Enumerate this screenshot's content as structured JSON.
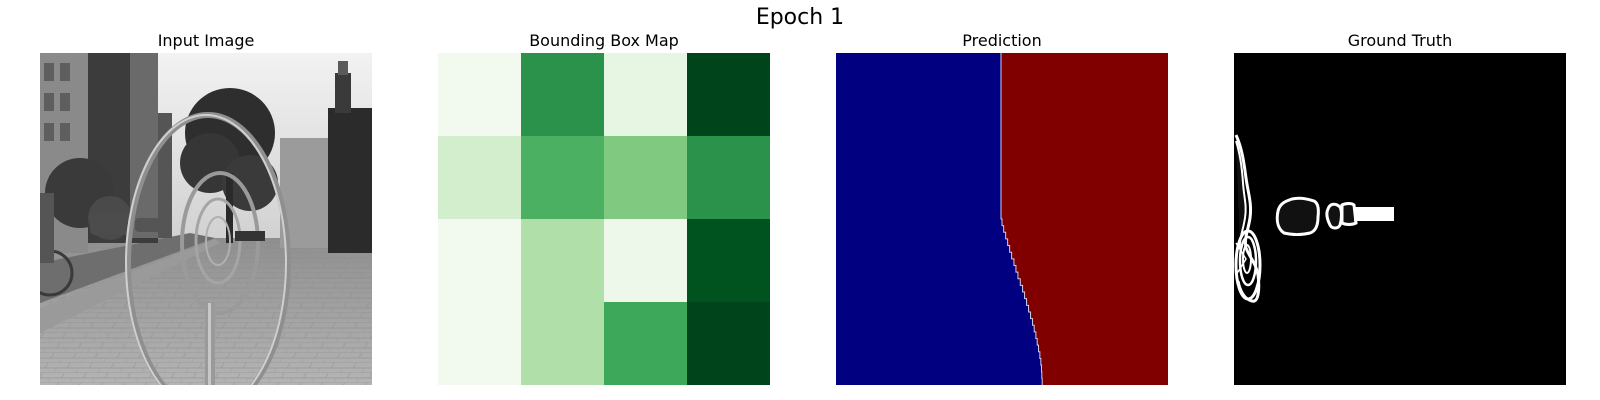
{
  "figure": {
    "title": "Epoch 1"
  },
  "panels": {
    "input": {
      "title": "Input Image"
    },
    "bbox": {
      "title": "Bounding Box Map"
    },
    "prediction": {
      "title": "Prediction"
    },
    "ground_truth": {
      "title": "Ground Truth"
    }
  },
  "chart_data": [
    {
      "type": "image",
      "title": "Input Image",
      "colormap": "gray",
      "axes": "off",
      "content": "grayscale street scene with circular bike racks on a brick sidewalk"
    },
    {
      "type": "heatmap",
      "title": "Bounding Box Map",
      "colormap": "Greens",
      "axes": "off",
      "grid_rows": 4,
      "grid_cols": 4,
      "values": [
        [
          0.05,
          0.8,
          0.12,
          1.0
        ],
        [
          0.25,
          0.65,
          0.5,
          0.8
        ],
        [
          0.05,
          0.35,
          0.1,
          0.95
        ],
        [
          0.05,
          0.35,
          0.72,
          1.0
        ]
      ],
      "colors": [
        [
          "#f2faf0",
          "#2a924a",
          "#e7f6e3",
          "#00441b"
        ],
        [
          "#d3eecd",
          "#4bb062",
          "#80c980",
          "#2a924a"
        ],
        [
          "#f2faf0",
          "#b0dfaa",
          "#eef8ea",
          "#00531f"
        ],
        [
          "#f2faf0",
          "#b0dfaa",
          "#3da75a",
          "#00441b"
        ]
      ]
    },
    {
      "type": "heatmap",
      "title": "Prediction",
      "colormap": "jet",
      "axes": "off",
      "classes": [
        {
          "value": 0,
          "color": "#000080"
        },
        {
          "value": 1,
          "color": "#800000"
        }
      ],
      "boundary_cols": [
        0.497,
        0.497,
        0.497,
        0.497,
        0.497,
        0.497,
        0.497,
        0.497,
        0.497,
        0.497,
        0.497,
        0.497,
        0.497,
        0.497,
        0.497,
        0.497,
        0.497,
        0.497,
        0.497,
        0.497,
        0.497,
        0.497,
        0.497,
        0.497,
        0.497,
        0.5,
        0.505,
        0.511,
        0.517,
        0.523,
        0.529,
        0.536,
        0.542,
        0.548,
        0.555,
        0.562,
        0.568,
        0.574,
        0.58,
        0.586,
        0.592,
        0.597,
        0.602,
        0.606,
        0.61,
        0.614,
        0.617,
        0.619,
        0.62,
        0.621
      ]
    },
    {
      "type": "heatmap",
      "title": "Ground Truth",
      "colormap": "gray",
      "axes": "off",
      "content": "binary mask with white outlined object contours on black background"
    }
  ]
}
